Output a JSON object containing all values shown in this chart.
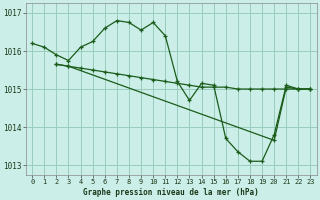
{
  "title": "Graphe pression niveau de la mer (hPa)",
  "background_color": "#cceee8",
  "grid_color": "#99ccbb",
  "line_color": "#1a5c1a",
  "xlim": [
    -0.5,
    23.5
  ],
  "ylim": [
    1012.75,
    1017.25
  ],
  "yticks": [
    1013,
    1014,
    1015,
    1016,
    1017
  ],
  "xticks": [
    0,
    1,
    2,
    3,
    4,
    5,
    6,
    7,
    8,
    9,
    10,
    11,
    12,
    13,
    14,
    15,
    16,
    17,
    18,
    19,
    20,
    21,
    22,
    23
  ],
  "series": [
    {
      "x": [
        0,
        1,
        2,
        3,
        4,
        5,
        6,
        7,
        8,
        9,
        10,
        11,
        12,
        13,
        14,
        15,
        16,
        17,
        18,
        19,
        20,
        21,
        22,
        23
      ],
      "y": [
        1016.2,
        1016.1,
        1015.9,
        1015.75,
        1016.1,
        1016.25,
        1016.6,
        1016.8,
        1016.75,
        1016.55,
        1016.75,
        1016.4,
        1015.2,
        1014.7,
        1015.15,
        1015.1,
        1013.7,
        1013.35,
        1013.1,
        1013.1,
        1013.8,
        1015.1,
        1015.0,
        1015.0
      ]
    },
    {
      "x": [
        2,
        3,
        4,
        5,
        6,
        7,
        8,
        9,
        10,
        11,
        12,
        13,
        14,
        15,
        16,
        17,
        18,
        19,
        20,
        21,
        22,
        23
      ],
      "y": [
        1015.65,
        1015.6,
        1015.55,
        1015.5,
        1015.45,
        1015.4,
        1015.35,
        1015.3,
        1015.25,
        1015.2,
        1015.15,
        1015.1,
        1015.05,
        1015.05,
        1015.05,
        1015.0,
        1015.0,
        1015.0,
        1015.0,
        1015.0,
        1015.0,
        1015.0
      ]
    },
    {
      "x": [
        2,
        3,
        20,
        21,
        22,
        23
      ],
      "y": [
        1015.65,
        1015.6,
        1013.65,
        1015.05,
        1015.0,
        1015.0
      ]
    }
  ]
}
